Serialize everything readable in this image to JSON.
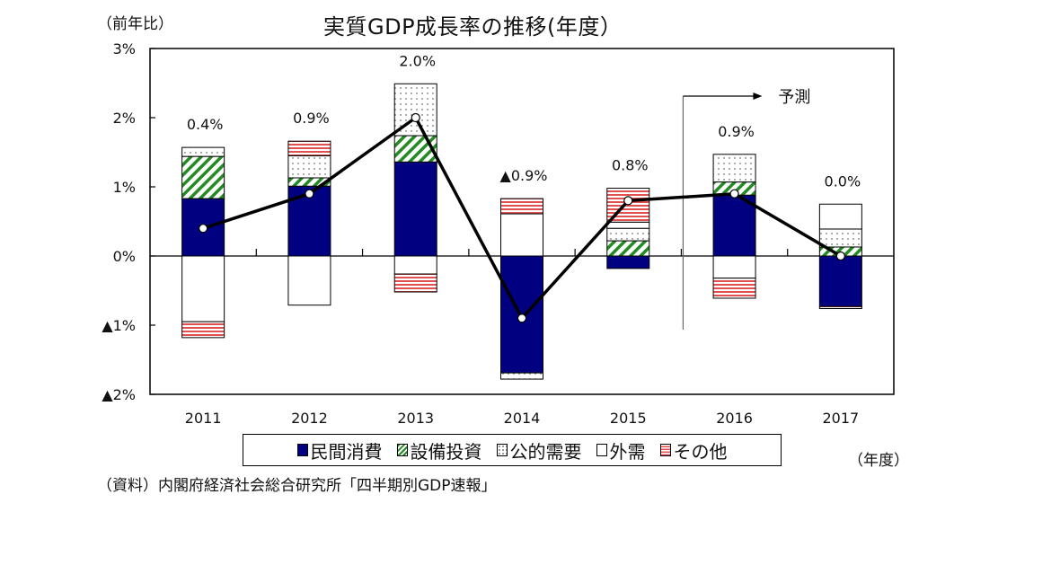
{
  "chart_data": {
    "type": "bar",
    "stacked": true,
    "title": "実質GDP成長率の推移(年度）",
    "ylabel": "（前年比）",
    "xlabel": "（年度）",
    "ylim": [
      -2,
      3
    ],
    "yticks": [
      3,
      2,
      1,
      0,
      -1,
      -2
    ],
    "ytick_labels": [
      "3%",
      "2%",
      "1%",
      "0%",
      "▲1%",
      "▲2%"
    ],
    "categories": [
      "2011",
      "2012",
      "2013",
      "2014",
      "2015",
      "2016",
      "2017"
    ],
    "series": [
      {
        "name": "民間消費",
        "color": "#000080",
        "pattern": "solid",
        "values": [
          0.83,
          1.01,
          1.36,
          -1.69,
          -0.18,
          0.88,
          -0.73
        ]
      },
      {
        "name": "設備投資",
        "color": "#228B22",
        "pattern": "diagonal",
        "values": [
          0.61,
          0.12,
          0.38,
          0.0,
          0.22,
          0.19,
          0.13
        ]
      },
      {
        "name": "公的需要",
        "color": "#555555",
        "pattern": "dots",
        "values": [
          0.13,
          0.32,
          0.75,
          -0.09,
          0.18,
          0.4,
          0.26
        ]
      },
      {
        "name": "外需",
        "color": "#ffffff",
        "pattern": "empty",
        "values": [
          -0.95,
          -0.71,
          -0.26,
          0.61,
          0.09,
          -0.32,
          0.36
        ]
      },
      {
        "name": "その他",
        "color": "#e05050",
        "pattern": "horizontal",
        "values": [
          -0.23,
          0.21,
          -0.26,
          0.22,
          0.49,
          -0.29,
          -0.03
        ]
      }
    ],
    "line": {
      "name": "実質GDP成長率",
      "values": [
        0.4,
        0.9,
        2.0,
        -0.9,
        0.8,
        0.9,
        0.0
      ]
    },
    "data_labels": [
      "0.4%",
      "0.9%",
      "2.0%",
      "▲0.9%",
      "0.8%",
      "0.9%",
      "0.0%"
    ],
    "annotation": {
      "text": "予測",
      "from_category": "2016"
    },
    "legend": "bottom",
    "grid": false
  },
  "source": "（資料）内閣府経済社会総合研究所「四半期別GDP速報」"
}
